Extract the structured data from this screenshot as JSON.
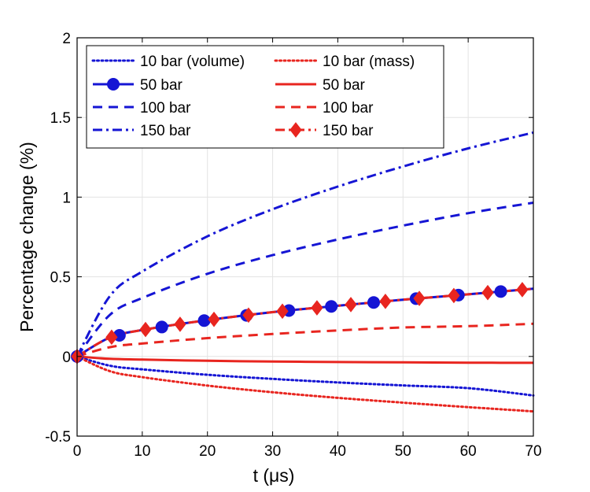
{
  "chart_data": {
    "type": "line",
    "title": "",
    "xlabel": "t (μs)",
    "ylabel": "Percentage change (%)",
    "xlim": [
      0,
      70
    ],
    "ylim": [
      -0.5,
      2
    ],
    "xticks": [
      0,
      10,
      20,
      30,
      40,
      50,
      60,
      70
    ],
    "yticks": [
      -0.5,
      0,
      0.5,
      1,
      1.5,
      2
    ],
    "xtick_labels": [
      "0",
      "10",
      "20",
      "30",
      "40",
      "50",
      "60",
      "70"
    ],
    "ytick_labels": [
      "-0.5",
      "0",
      "0.5",
      "1",
      "1.5",
      "2"
    ],
    "grid": true,
    "legend_position": "top-left",
    "series": [
      {
        "name": "10 bar (volume)",
        "group": "volume",
        "color": "#1515d4",
        "dash": "dotted",
        "marker": "none",
        "x": [
          0,
          5,
          10,
          20,
          30,
          40,
          50,
          60,
          70
        ],
        "y": [
          0,
          -0.058,
          -0.081,
          -0.115,
          -0.141,
          -0.163,
          -0.182,
          -0.199,
          -0.245
        ]
      },
      {
        "name": "50 bar",
        "group": "volume",
        "color": "#1515d4",
        "dash": "solid",
        "marker": "circle",
        "x": [
          0,
          5,
          10,
          20,
          30,
          40,
          50,
          60,
          70
        ],
        "y": [
          0,
          0.118,
          0.166,
          0.228,
          0.278,
          0.318,
          0.356,
          0.39,
          0.425
        ]
      },
      {
        "name": "100 bar",
        "group": "volume",
        "color": "#1515d4",
        "dash": "dashed",
        "marker": "none",
        "x": [
          0,
          5,
          10,
          20,
          30,
          40,
          50,
          60,
          70
        ],
        "y": [
          0,
          0.26,
          0.367,
          0.519,
          0.636,
          0.734,
          0.821,
          0.899,
          0.965
        ]
      },
      {
        "name": "150 bar",
        "group": "volume",
        "color": "#1515d4",
        "dash": "dashdot",
        "marker": "none",
        "x": [
          0,
          5,
          10,
          20,
          30,
          40,
          50,
          60,
          70
        ],
        "y": [
          0,
          0.377,
          0.533,
          0.754,
          0.924,
          1.066,
          1.192,
          1.306,
          1.405
        ]
      },
      {
        "name": "10 bar (mass)",
        "group": "mass",
        "color": "#e8251f",
        "dash": "dotted",
        "marker": "none",
        "x": [
          0,
          5,
          10,
          20,
          30,
          40,
          50,
          60,
          70
        ],
        "y": [
          0,
          -0.092,
          -0.13,
          -0.183,
          -0.225,
          -0.26,
          -0.29,
          -0.318,
          -0.345
        ]
      },
      {
        "name": "50 bar",
        "group": "mass",
        "color": "#e8251f",
        "dash": "solid",
        "marker": "none",
        "x": [
          0,
          5,
          10,
          20,
          30,
          40,
          50,
          60,
          70
        ],
        "y": [
          0,
          -0.015,
          -0.02,
          -0.027,
          -0.032,
          -0.035,
          -0.037,
          -0.039,
          -0.04
        ]
      },
      {
        "name": "100 bar",
        "group": "mass",
        "color": "#e8251f",
        "dash": "dashed",
        "marker": "none",
        "x": [
          0,
          5,
          10,
          20,
          30,
          40,
          50,
          60,
          70
        ],
        "y": [
          0,
          0.058,
          0.081,
          0.115,
          0.141,
          0.163,
          0.182,
          0.19,
          0.205
        ]
      },
      {
        "name": "150 bar",
        "group": "mass",
        "color": "#e8251f",
        "dash": "dashdot",
        "marker": "diamond",
        "x": [
          0,
          5,
          10,
          20,
          30,
          40,
          50,
          60,
          70
        ],
        "y": [
          0,
          0.118,
          0.166,
          0.228,
          0.278,
          0.318,
          0.356,
          0.39,
          0.425
        ]
      }
    ],
    "markers": [
      {
        "series": "50 bar",
        "group": "volume",
        "shape": "circle",
        "x": [
          0,
          6.5,
          13,
          19.5,
          26,
          32.5,
          39,
          45.5,
          52,
          58.5,
          65
        ]
      },
      {
        "series": "150 bar",
        "group": "mass",
        "shape": "diamond",
        "x": [
          0,
          5.3,
          10.5,
          15.8,
          21,
          26.3,
          31.5,
          36.8,
          42,
          47.3,
          52.5,
          57.8,
          63,
          68.3
        ]
      }
    ],
    "legend": [
      {
        "label": "10 bar (volume)",
        "color": "#1515d4",
        "dash": "dotted",
        "marker": "none"
      },
      {
        "label": "10 bar (mass)",
        "color": "#e8251f",
        "dash": "dotted",
        "marker": "none"
      },
      {
        "label": "50 bar",
        "color": "#1515d4",
        "dash": "solid",
        "marker": "circle"
      },
      {
        "label": "50 bar",
        "color": "#e8251f",
        "dash": "solid",
        "marker": "none"
      },
      {
        "label": "100 bar",
        "color": "#1515d4",
        "dash": "dashed",
        "marker": "none"
      },
      {
        "label": "100 bar",
        "color": "#e8251f",
        "dash": "dashed",
        "marker": "none"
      },
      {
        "label": "150 bar",
        "color": "#1515d4",
        "dash": "dashdot",
        "marker": "none"
      },
      {
        "label": "150 bar",
        "color": "#e8251f",
        "dash": "dashdot",
        "marker": "diamond"
      }
    ]
  }
}
